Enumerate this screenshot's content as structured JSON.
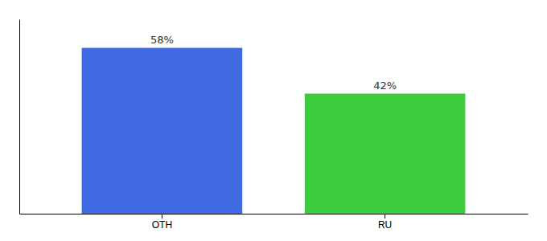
{
  "chart_data": {
    "type": "bar",
    "categories": [
      "OTH",
      "RU"
    ],
    "values": [
      58,
      42
    ],
    "colors": [
      "#4169e1",
      "#3dcc3d"
    ],
    "value_labels": [
      "58%",
      "42%"
    ],
    "data_labels": true,
    "ylim": [
      0,
      68
    ],
    "tick_labels": "x"
  }
}
